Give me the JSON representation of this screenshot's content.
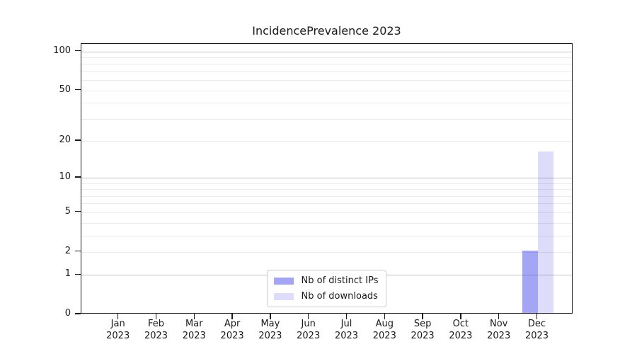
{
  "chart": {
    "title": "IncidencePrevalence 2023",
    "legend": {
      "items": [
        {
          "label": "Nb of distinct IPs",
          "color": "rgba(30,30,230,0.40)"
        },
        {
          "label": "Nb of downloads",
          "color": "rgba(30,30,230,0.15)"
        }
      ],
      "position": "lower center"
    }
  },
  "chart_data": {
    "type": "bar",
    "title": "IncidencePrevalence 2023",
    "categories": [
      "Jan 2023",
      "Feb 2023",
      "Mar 2023",
      "Apr 2023",
      "May 2023",
      "Jun 2023",
      "Jul 2023",
      "Aug 2023",
      "Sep 2023",
      "Oct 2023",
      "Nov 2023",
      "Dec 2023"
    ],
    "category_labels": [
      {
        "month": "Jan",
        "year": "2023"
      },
      {
        "month": "Feb",
        "year": "2023"
      },
      {
        "month": "Mar",
        "year": "2023"
      },
      {
        "month": "Apr",
        "year": "2023"
      },
      {
        "month": "May",
        "year": "2023"
      },
      {
        "month": "Jun",
        "year": "2023"
      },
      {
        "month": "Jul",
        "year": "2023"
      },
      {
        "month": "Aug",
        "year": "2023"
      },
      {
        "month": "Sep",
        "year": "2023"
      },
      {
        "month": "Oct",
        "year": "2023"
      },
      {
        "month": "Nov",
        "year": "2023"
      },
      {
        "month": "Dec",
        "year": "2023"
      }
    ],
    "series": [
      {
        "name": "Nb of distinct IPs",
        "color": "rgba(30,30,230,0.40)",
        "values": [
          0,
          0,
          0,
          0,
          0,
          0,
          0,
          0,
          0,
          0,
          0,
          2
        ]
      },
      {
        "name": "Nb of downloads",
        "color": "rgba(30,30,230,0.15)",
        "values": [
          0,
          0,
          0,
          0,
          0,
          0,
          0,
          0,
          0,
          0,
          0,
          16
        ]
      }
    ],
    "xlabel": "",
    "ylabel": "",
    "yscale": "log1p",
    "ylim": [
      0,
      114
    ],
    "ytick_values": [
      0,
      1,
      2,
      5,
      10,
      20,
      50,
      100
    ],
    "ytick_labels": [
      "0",
      "1",
      "2",
      "5",
      "10",
      "20",
      "50",
      "100"
    ],
    "major_gridlines": [
      1,
      10,
      100
    ],
    "minor_gridlines": [
      2,
      3,
      4,
      5,
      6,
      7,
      8,
      9,
      20,
      30,
      40,
      50,
      60,
      70,
      80,
      90
    ],
    "grid": "horizontal",
    "legend_position": "lower center"
  },
  "colors": {
    "spine": "#1a1a1a",
    "major_grid": "#c3c3c3",
    "minor_grid": "#ececec",
    "text": "#1a1a1a",
    "background": "#ffffff"
  }
}
